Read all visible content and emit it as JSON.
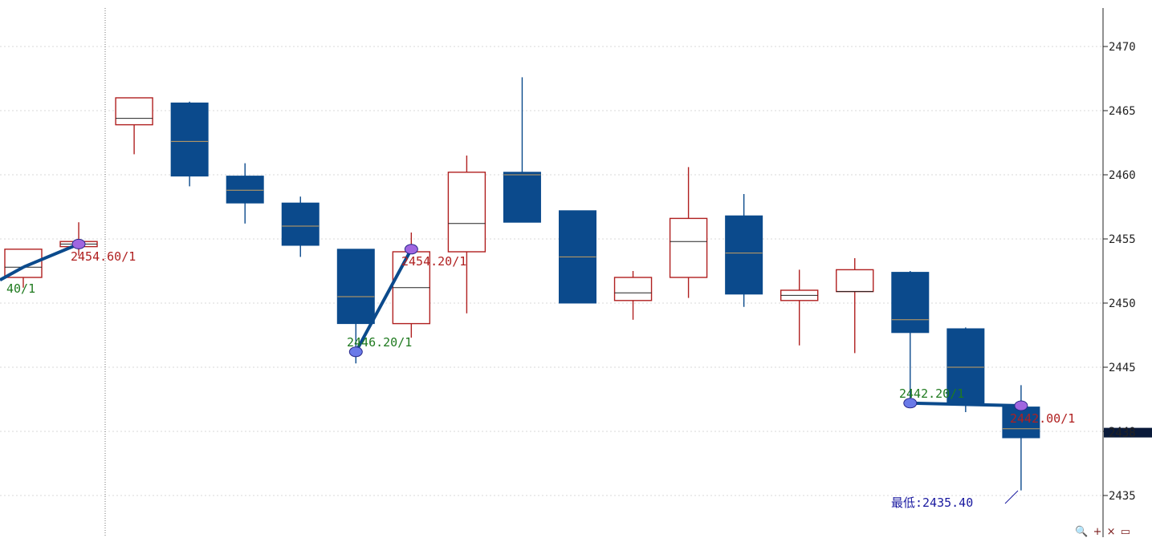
{
  "chart_data": {
    "type": "candlestick",
    "y_axis": {
      "ticks": [
        2435,
        2440,
        2445,
        2450,
        2455,
        2460,
        2465,
        2470
      ],
      "ylim": [
        2432.5,
        2473.5
      ]
    },
    "last_price_marker": "2438",
    "candles": [
      {
        "open": 2452.0,
        "high": 2454.2,
        "low": 2451.2,
        "close": 2454.2,
        "mid": 2452.8
      },
      {
        "open": 2454.4,
        "high": 2456.3,
        "low": 2453.7,
        "close": 2454.8,
        "mid": 2454.6
      },
      {
        "open": 2463.9,
        "high": 2466.0,
        "low": 2461.6,
        "close": 2466.0,
        "mid": 2464.4
      },
      {
        "open": 2465.6,
        "high": 2465.7,
        "low": 2459.1,
        "close": 2459.9,
        "mid": 2462.6
      },
      {
        "open": 2459.9,
        "high": 2460.9,
        "low": 2456.2,
        "close": 2457.8,
        "mid": 2458.8
      },
      {
        "open": 2457.8,
        "high": 2458.3,
        "low": 2453.6,
        "close": 2454.5,
        "mid": 2456.0
      },
      {
        "open": 2454.2,
        "high": 2454.2,
        "low": 2445.3,
        "close": 2448.4,
        "mid": 2450.5
      },
      {
        "open": 2448.4,
        "high": 2455.5,
        "low": 2447.3,
        "close": 2454.0,
        "mid": 2451.2
      },
      {
        "open": 2454.0,
        "high": 2461.5,
        "low": 2449.2,
        "close": 2460.2,
        "mid": 2456.2
      },
      {
        "open": 2460.2,
        "high": 2467.6,
        "low": 2456.3,
        "close": 2456.3,
        "mid": 2460.0
      },
      {
        "open": 2457.2,
        "high": 2457.2,
        "low": 2450.0,
        "close": 2450.0,
        "mid": 2453.6
      },
      {
        "open": 2450.2,
        "high": 2452.5,
        "low": 2448.7,
        "close": 2452.0,
        "mid": 2450.8
      },
      {
        "open": 2452.0,
        "high": 2460.6,
        "low": 2450.4,
        "close": 2456.6,
        "mid": 2454.8
      },
      {
        "open": 2456.8,
        "high": 2458.5,
        "low": 2449.7,
        "close": 2450.7,
        "mid": 2453.9
      },
      {
        "open": 2450.2,
        "high": 2452.6,
        "low": 2446.7,
        "close": 2451.0,
        "mid": 2450.6
      },
      {
        "open": 2450.9,
        "high": 2453.5,
        "low": 2446.1,
        "close": 2452.6,
        "mid": 2450.9
      },
      {
        "open": 2452.4,
        "high": 2452.5,
        "low": 2442.2,
        "close": 2447.7,
        "mid": 2448.7
      },
      {
        "open": 2448.0,
        "high": 2448.1,
        "low": 2441.5,
        "close": 2442.2,
        "mid": 2445.0
      },
      {
        "open": 2441.9,
        "high": 2443.6,
        "low": 2435.4,
        "close": 2439.5,
        "mid": 2440.2
      }
    ],
    "zigzag": [
      {
        "candle": 0,
        "value": 2452.8
      },
      {
        "candle": 1,
        "value": 2454.6
      },
      {
        "candle": 6,
        "value": 2446.2
      },
      {
        "candle": 7,
        "value": 2454.2
      },
      {
        "candle": 16,
        "value": 2442.2
      },
      {
        "candle": 18,
        "value": 2442.0
      }
    ],
    "annotations": [
      {
        "text": "40/1",
        "color": "#1f7a1f"
      },
      {
        "text": "2454.60/1",
        "color": "#b02020"
      },
      {
        "text": "2446.20/1",
        "color": "#1f7a1f"
      },
      {
        "text": "2454.20/1",
        "color": "#b02020"
      },
      {
        "text": "2442.20/1",
        "color": "#1f7a1f"
      },
      {
        "text": "2442.00/1",
        "color": "#b02020"
      },
      {
        "text": "最低:2435.40",
        "color": "#1a1aa0"
      }
    ],
    "colors": {
      "bearish_fill": "#0b4a8c",
      "bullish_outline": "#b02020",
      "zigzag_line": "#0b4a8c",
      "grid": "#d8d8d8"
    },
    "grid": true
  },
  "toolbar": {
    "zoom_label": "🔍",
    "plus_label": "+",
    "close_label": "×",
    "window_label": "▭"
  }
}
